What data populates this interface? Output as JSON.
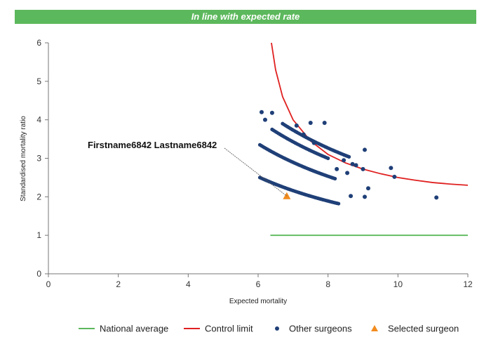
{
  "banner": {
    "text": "In line with expected rate",
    "color": "#5cb85c"
  },
  "chart_data": {
    "type": "scatter",
    "xlabel": "Expected mortality",
    "ylabel": "Standardised mortality ratio",
    "xlim": [
      0,
      12
    ],
    "ylim": [
      0,
      6
    ],
    "xticks": [
      0,
      2,
      4,
      6,
      8,
      10,
      12
    ],
    "yticks": [
      0,
      1,
      2,
      3,
      4,
      5,
      6
    ],
    "grid": false,
    "legend_position": "bottom",
    "annotation": {
      "text": "Firstname6842 Lastname6842",
      "target": [
        6.82,
        2.02
      ]
    },
    "series": [
      {
        "name": "National average",
        "kind": "line",
        "color": "#5cb85c",
        "x": [
          6.35,
          12
        ],
        "y": [
          1,
          1
        ]
      },
      {
        "name": "Control limit",
        "kind": "line",
        "color": "#e02020",
        "x": [
          6.38,
          6.5,
          6.7,
          7.0,
          7.5,
          8.0,
          8.5,
          9.0,
          9.5,
          10.0,
          10.5,
          11.0,
          11.5,
          12.0
        ],
        "y": [
          6.0,
          5.3,
          4.6,
          4.0,
          3.45,
          3.1,
          2.88,
          2.72,
          2.6,
          2.5,
          2.43,
          2.37,
          2.33,
          2.3
        ]
      },
      {
        "name": "Other surgeons",
        "kind": "scatter",
        "color": "#1f3f77",
        "curves": [
          {
            "x_start": 6.05,
            "x_end": 8.3,
            "y_at_start": 2.5
          },
          {
            "x_start": 6.05,
            "x_end": 8.2,
            "y_at_start": 3.35
          },
          {
            "x_start": 6.4,
            "x_end": 8.0,
            "y_at_start": 3.75
          },
          {
            "x_start": 6.7,
            "x_end": 8.6,
            "y_at_start": 3.9
          }
        ],
        "x": [
          6.1,
          6.4,
          6.2,
          7.1,
          7.5,
          7.9,
          7.3,
          7.6,
          8.45,
          8.55,
          8.7,
          9.05,
          9.0,
          9.05,
          9.15,
          9.8,
          9.9,
          11.1,
          8.25,
          8.8,
          8.65
        ],
        "y": [
          4.2,
          4.18,
          4.0,
          3.85,
          3.92,
          3.92,
          3.62,
          3.4,
          2.95,
          2.62,
          2.85,
          3.22,
          2.72,
          2.0,
          2.22,
          2.75,
          2.52,
          1.98,
          2.72,
          2.82,
          2.02
        ]
      },
      {
        "name": "Selected surgeon",
        "kind": "marker",
        "marker": "triangle",
        "color": "#f28c1f",
        "x": [
          6.82
        ],
        "y": [
          2.02
        ]
      }
    ]
  }
}
